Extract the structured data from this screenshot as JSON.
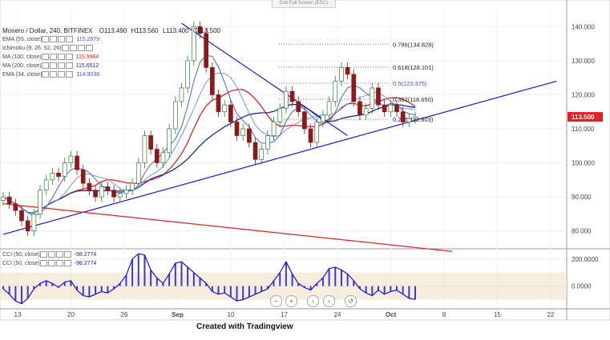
{
  "header": {
    "symbol": "Monero / Dollar, 240, BITFINEX",
    "open": "O113.490",
    "high": "H113.560",
    "low": "L113.400",
    "close": "C113.500"
  },
  "exit_fullscreen": "Exit Full Screen (ESC)",
  "credit": "Created with Tradingview",
  "indicators": [
    {
      "label": "EMA (55, close)",
      "value": "115.2979",
      "color": "#3355cc"
    },
    {
      "label": "Ichimoku (9, 26, 52, 26)",
      "value": "",
      "color": "#888888"
    },
    {
      "label": "MA (100, close)",
      "value": "115.9964",
      "color": "#dd2222"
    },
    {
      "label": "MA (200, close)",
      "value": "115.6512",
      "color": "#1a2a88"
    },
    {
      "label": "EMA (34, close)",
      "value": "114.9036",
      "color": "#3355cc"
    }
  ],
  "osc_legend": [
    {
      "label": "CCI (50, close)",
      "value": "-98.2774",
      "color": "#1a1acc"
    },
    {
      "label": "CCI (50, close)",
      "value": "-98.2774",
      "color": "#1a1acc"
    }
  ],
  "nav_icons": [
    "minus-icon",
    "plus-icon",
    "chevron-left-icon",
    "chevron-right-icon",
    "reset-icon"
  ],
  "chart_data": [
    {
      "type": "candlestick",
      "title": "Monero / Dollar, 240, BITFINEX",
      "ylim": [
        75,
        145
      ],
      "y_ticks": [
        "80.000",
        "90.000",
        "100.000",
        "110.000",
        "120.000",
        "130.000",
        "140.000"
      ],
      "x_tick_labels": [
        "13",
        "20",
        "26",
        "Sep",
        "10",
        "17",
        "24",
        "Oct",
        "8",
        "15",
        "22"
      ],
      "last_price": "113.500",
      "last_price_color": "#dd2222",
      "close_series": [
        90,
        88,
        86,
        83,
        80,
        85,
        92,
        95,
        97,
        96,
        100,
        102,
        98,
        94,
        92,
        90,
        93,
        92,
        90,
        91,
        92,
        94,
        100,
        108,
        104,
        100,
        103,
        110,
        118,
        122,
        130,
        140,
        138,
        128,
        120,
        115,
        117,
        112,
        108,
        110,
        106,
        101,
        104,
        108,
        112,
        116,
        121,
        118,
        115,
        110,
        106,
        112,
        114,
        118,
        124,
        128,
        126,
        118,
        114,
        116,
        122,
        117,
        115,
        117,
        115,
        112,
        113,
        113.5
      ],
      "fib_levels": [
        {
          "label": "0.786(134.828)",
          "value": 134.828
        },
        {
          "label": "0.618(128.101)",
          "value": 128.101
        },
        {
          "label": "0.5(123.375)",
          "value": 123.375
        },
        {
          "label": "0.382(118.650)",
          "value": 118.65
        },
        {
          "label": "0.236(112.803)",
          "value": 112.803
        }
      ],
      "trendlines": [
        {
          "name": "",
          "color": "#1a1acc"
        },
        {
          "name": "",
          "color": "#1a1acc"
        },
        {
          "name": "",
          "color": "#dd2222"
        }
      ]
    },
    {
      "type": "area",
      "title": "CCI (50, close)",
      "ylim": [
        -150,
        270
      ],
      "y_ticks": [
        "200.0000",
        "0.0000"
      ],
      "band": [
        -100,
        100
      ],
      "values": [
        -20,
        -60,
        -110,
        -130,
        -90,
        -20,
        20,
        40,
        20,
        -10,
        30,
        40,
        -30,
        -70,
        -80,
        -60,
        -40,
        -50,
        -20,
        20,
        80,
        200,
        240,
        230,
        120,
        60,
        20,
        90,
        170,
        180,
        140,
        100,
        60,
        20,
        -40,
        -60,
        -50,
        -80,
        -110,
        -100,
        -80,
        -60,
        -40,
        -20,
        40,
        100,
        180,
        90,
        20,
        -10,
        -30,
        20,
        60,
        130,
        140,
        120,
        90,
        40,
        -20,
        -50,
        -70,
        -30,
        -60,
        -40,
        -30,
        -60,
        -90,
        -98.3
      ]
    }
  ]
}
